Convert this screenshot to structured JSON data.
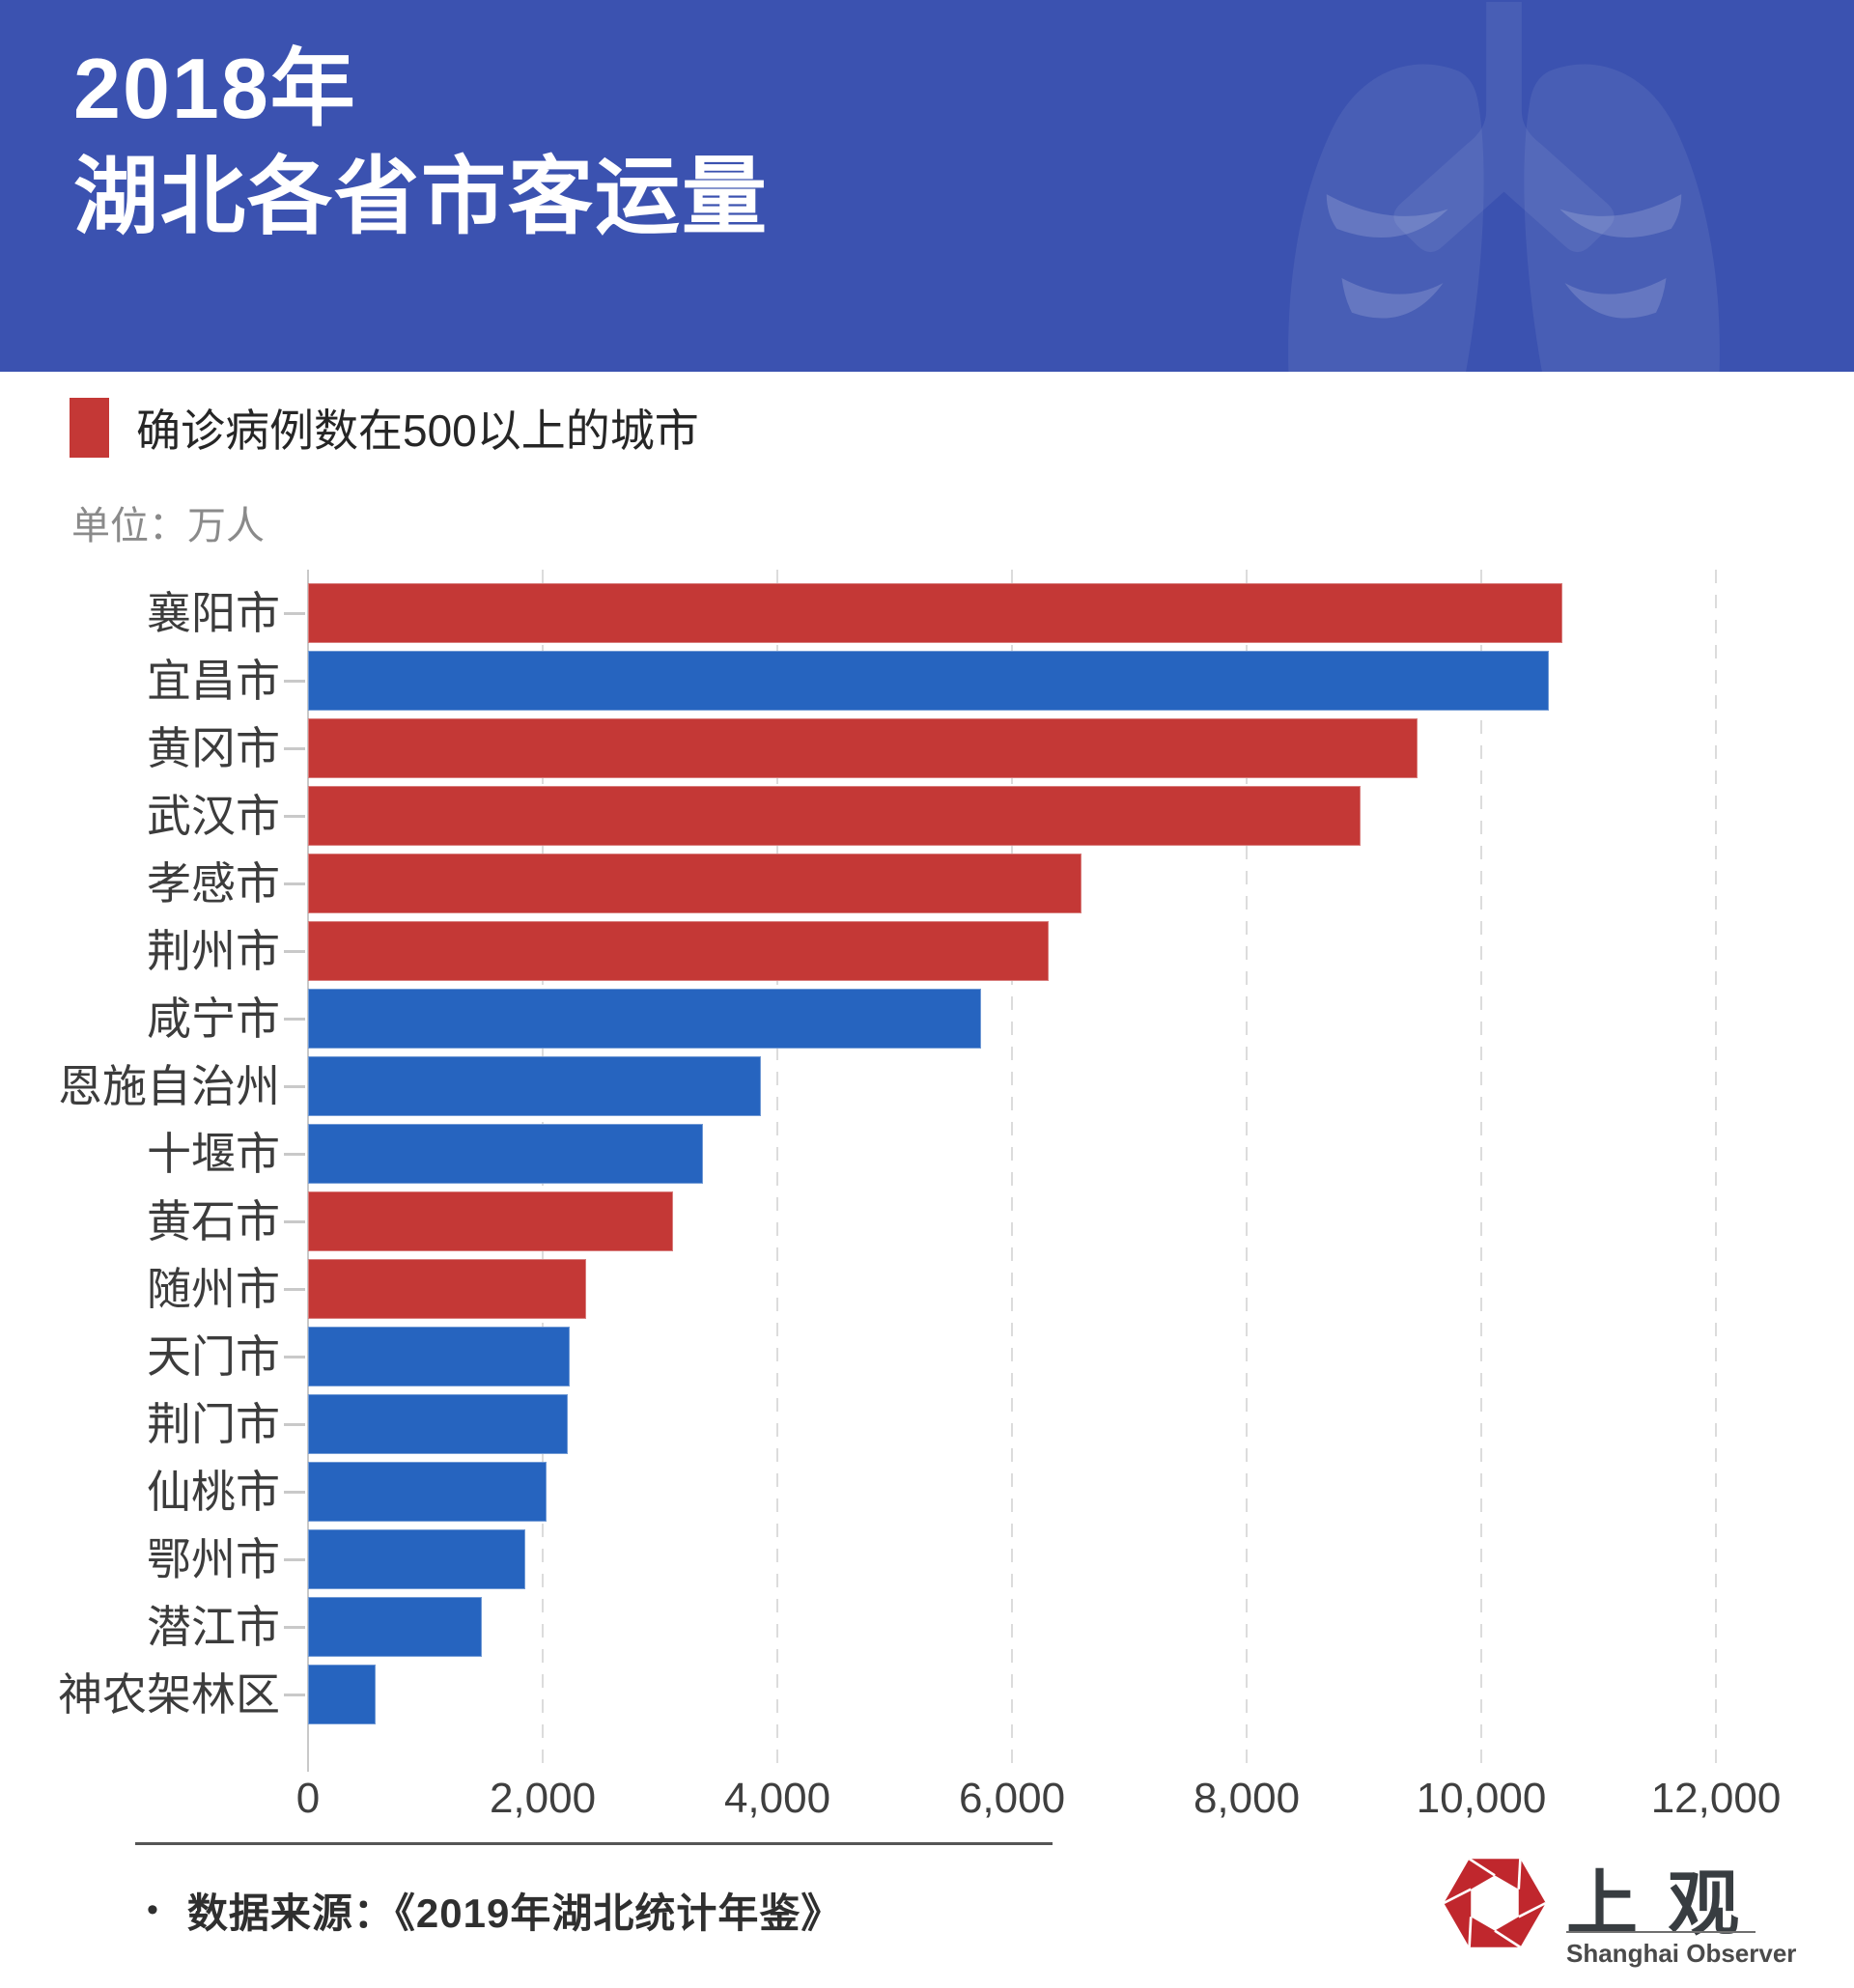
{
  "header": {
    "title_line1": "2018年",
    "title_line2": "湖北各省市客运量",
    "background_color": "#3b52b0"
  },
  "legend": {
    "label": "确诊病例数在500以上的城市",
    "swatch_color": "#c43836"
  },
  "unit_label": "单位：万人",
  "chart_data": {
    "type": "bar",
    "orientation": "horizontal",
    "title": "2018年湖北各省市客运量",
    "unit": "万人",
    "xlim": [
      0,
      12000
    ],
    "grid": "dashed vertical gridlines every 2000",
    "legend_position": "top-left",
    "highlight_meaning": "确诊病例数在500以上的城市",
    "colors": {
      "highlight": "#c43836",
      "normal": "#2664bf"
    },
    "x_ticks": [
      {
        "value": 0,
        "label": "0"
      },
      {
        "value": 2000,
        "label": "2,000"
      },
      {
        "value": 4000,
        "label": "4,000"
      },
      {
        "value": 6000,
        "label": "6,000"
      },
      {
        "value": 8000,
        "label": "8,000"
      },
      {
        "value": 10000,
        "label": "10,000"
      },
      {
        "value": 12000,
        "label": "12,000"
      }
    ],
    "categories": [
      "襄阳市",
      "宜昌市",
      "黄冈市",
      "武汉市",
      "孝感市",
      "荆州市",
      "咸宁市",
      "恩施自治州",
      "十堰市",
      "黄石市",
      "随州市",
      "天门市",
      "荆门市",
      "仙桃市",
      "鄂州市",
      "潜江市",
      "神农架林区"
    ],
    "series": [
      {
        "name": "客运量",
        "values": [
          10690,
          10580,
          9460,
          8970,
          6590,
          6310,
          5740,
          3860,
          3370,
          3110,
          2370,
          2230,
          2210,
          2030,
          1850,
          1480,
          580
        ]
      }
    ],
    "highlighted": [
      true,
      false,
      true,
      true,
      true,
      true,
      false,
      false,
      false,
      true,
      true,
      false,
      false,
      false,
      false,
      false,
      false
    ]
  },
  "footer": {
    "bullet": "•",
    "source": "数据来源：《2019年湖北统计年鉴》",
    "logo_cn": "上观",
    "logo_en": "Shanghai Observer",
    "logo_color": "#c0272d"
  }
}
